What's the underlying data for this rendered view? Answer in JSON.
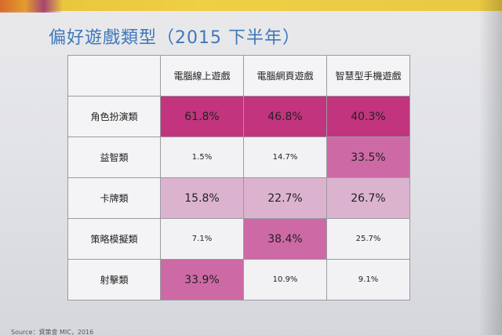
{
  "slide": {
    "title": "偏好遊戲類型（2015 下半年）",
    "source": "Source：資策會 MIC，2016"
  },
  "table": {
    "headers": [
      "",
      "電腦線上遊戲",
      "電腦網頁遊戲",
      "智慧型手機遊戲"
    ],
    "rows": [
      {
        "label": "角色扮演類",
        "cells": [
          {
            "value": "61.8%",
            "bg": "#c2347e",
            "size": "big"
          },
          {
            "value": "46.8%",
            "bg": "#c2347e",
            "size": "big"
          },
          {
            "value": "40.3%",
            "bg": "#c2347e",
            "size": "big"
          }
        ]
      },
      {
        "label": "益智類",
        "cells": [
          {
            "value": "1.5%",
            "bg": "#f2f2f4",
            "size": "small"
          },
          {
            "value": "14.7%",
            "bg": "#f2f2f4",
            "size": "small"
          },
          {
            "value": "33.5%",
            "bg": "#cd6aa6",
            "size": "big"
          }
        ]
      },
      {
        "label": "卡牌類",
        "cells": [
          {
            "value": "15.8%",
            "bg": "#dcb3cf",
            "size": "big"
          },
          {
            "value": "22.7%",
            "bg": "#dcb3cf",
            "size": "big"
          },
          {
            "value": "26.7%",
            "bg": "#dcb3cf",
            "size": "big"
          }
        ]
      },
      {
        "label": "策略模擬類",
        "cells": [
          {
            "value": "7.1%",
            "bg": "#f2f2f4",
            "size": "small"
          },
          {
            "value": "38.4%",
            "bg": "#cd6aa6",
            "size": "big"
          },
          {
            "value": "25.7%",
            "bg": "#f2f2f4",
            "size": "small"
          }
        ]
      },
      {
        "label": "射擊類",
        "cells": [
          {
            "value": "33.9%",
            "bg": "#cd6aa6",
            "size": "big"
          },
          {
            "value": "10.9%",
            "bg": "#f2f2f4",
            "size": "small"
          },
          {
            "value": "9.1%",
            "bg": "#f2f2f4",
            "size": "small"
          }
        ]
      }
    ]
  }
}
